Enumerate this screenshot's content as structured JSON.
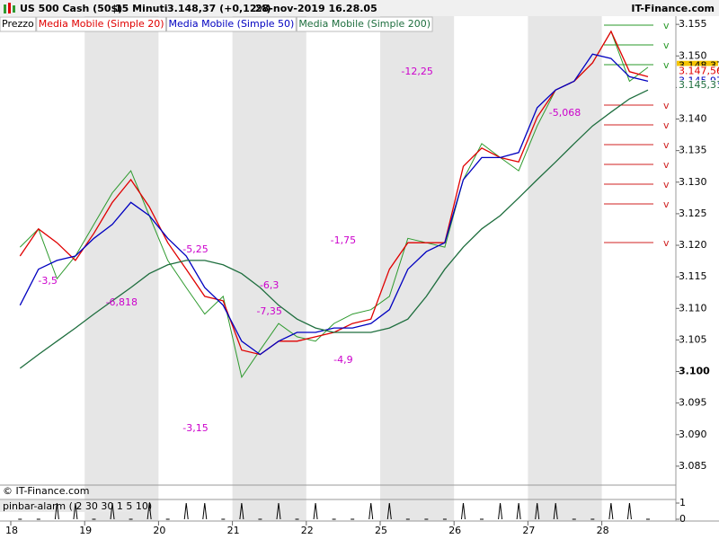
{
  "chart_data": {
    "type": "line",
    "title": "US 500 Cash (50$)",
    "interval": "15 Minuti",
    "quote": "3.148,37 (+0,12%)",
    "timestamp": "28-nov-2019 16.28.05",
    "brand": "IT-Finance.com",
    "footer": "© IT-Finance.com",
    "categories": [
      "18",
      "19",
      "20",
      "21",
      "22",
      "25",
      "26",
      "27",
      "28"
    ],
    "series": [
      {
        "name": "Prezzo",
        "color": "#2e9a2e",
        "values": [
          [
            3119.7,
            3122.6,
            3114.7,
            3118.3
          ],
          [
            3123.3,
            3128.3,
            3131.8,
            3124.7
          ],
          [
            3117.6,
            3113.3,
            3109.1,
            3111.9
          ],
          [
            3099.1,
            3103.4,
            3107.6,
            3105.5
          ],
          [
            3104.8,
            3107.6,
            3109.1,
            3109.8
          ],
          [
            3111.9,
            3121.1,
            3120.4,
            3119.7
          ],
          [
            3130.4,
            3136.1,
            3133.9,
            3131.8
          ],
          [
            3138.9,
            3144.6,
            3146.0,
            3148.9
          ],
          [
            3153.9,
            3146.0,
            3148.2,
            null
          ]
        ]
      },
      {
        "name": "Media Mobile (Simple 20)",
        "color": "#e00000",
        "values": [
          [
            3118.3,
            3122.6,
            3120.4,
            3117.6
          ],
          [
            3121.9,
            3126.8,
            3130.4,
            3126.1
          ],
          [
            3120.4,
            3116.2,
            3111.9,
            3111.2
          ],
          [
            3103.4,
            3102.7,
            3104.8,
            3104.8
          ],
          [
            3105.5,
            3106.2,
            3107.6,
            3108.3
          ],
          [
            3116.2,
            3120.4,
            3120.4,
            3120.4
          ],
          [
            3132.5,
            3135.4,
            3133.9,
            3133.2
          ],
          [
            3140.3,
            3144.6,
            3146.0,
            3148.9
          ],
          [
            3153.9,
            3147.5,
            3146.7,
            null
          ]
        ]
      },
      {
        "name": "Media Mobile (Simple 50)",
        "color": "#0000c0",
        "values": [
          [
            3110.5,
            3116.2,
            3117.6,
            3118.3
          ],
          [
            3121.1,
            3123.3,
            3126.8,
            3124.7
          ],
          [
            3121.1,
            3118.3,
            3113.3,
            3110.5
          ],
          [
            3104.8,
            3102.7,
            3104.8,
            3106.2
          ],
          [
            3106.2,
            3106.9,
            3106.9,
            3107.6
          ],
          [
            3109.8,
            3116.2,
            3119.0,
            3120.4
          ],
          [
            3130.4,
            3133.9,
            3133.9,
            3134.7
          ],
          [
            3141.8,
            3144.6,
            3146.0,
            3150.3
          ],
          [
            3149.6,
            3146.7,
            3146.0,
            null
          ]
        ]
      },
      {
        "name": "Media Mobile (Simple 200)",
        "color": "#1e6e3e",
        "values": [
          [
            3100.5,
            3102.7,
            3104.8,
            3106.9
          ],
          [
            3109.1,
            3111.2,
            3113.3,
            3115.5
          ],
          [
            3116.9,
            3117.6,
            3117.6,
            3116.9
          ],
          [
            3115.5,
            3113.3,
            3110.5,
            3108.3
          ],
          [
            3106.9,
            3106.2,
            3106.2,
            3106.2
          ],
          [
            3106.9,
            3108.3,
            3111.9,
            3116.2
          ],
          [
            3119.7,
            3122.6,
            3124.7,
            3127.5
          ],
          [
            3130.4,
            3133.2,
            3136.1,
            3138.9
          ],
          [
            3141.1,
            3143.2,
            3144.6,
            null
          ]
        ]
      }
    ],
    "ylim": [
      3082,
      3156.3
    ],
    "yticks": [
      {
        "value": 3085,
        "label": "3.085"
      },
      {
        "value": 3090,
        "label": "3.090"
      },
      {
        "value": 3095,
        "label": "3.095"
      },
      {
        "value": 3100,
        "label": "3.100"
      },
      {
        "value": 3105,
        "label": "3.105"
      },
      {
        "value": 3110,
        "label": "3.110"
      },
      {
        "value": 3115,
        "label": "3.115"
      },
      {
        "value": 3120,
        "label": "3.120"
      },
      {
        "value": 3125,
        "label": "3.125"
      },
      {
        "value": 3130,
        "label": "3.130"
      },
      {
        "value": 3135,
        "label": "3.135"
      },
      {
        "value": 3140,
        "label": "3.140"
      },
      {
        "value": 3145,
        "label": "3.145"
      },
      {
        "value": 3150,
        "label": "3.150"
      },
      {
        "value": 3155,
        "label": "3.155"
      }
    ],
    "price_labels": [
      {
        "value": 3148.37,
        "label": "3.148,37",
        "color": "#f5c400"
      },
      {
        "value": 3147.56,
        "label": "3.147,56",
        "color": "#e00000"
      },
      {
        "value": 3145.97,
        "label": "3.145,97",
        "color": "#0000c0"
      },
      {
        "value": 3145.31,
        "label": "3.145,31",
        "color": "#1e6e3e"
      }
    ],
    "annotations": [
      {
        "text": "-3,5",
        "category": 0,
        "y": 3114.3
      },
      {
        "text": "-6,818",
        "category": 1,
        "y": 3110.9
      },
      {
        "text": "-5,25",
        "category": 2,
        "y": 3119.3
      },
      {
        "text": "-3,15",
        "category": 2,
        "y": 3091.0
      },
      {
        "text": "-7,35",
        "category": 3,
        "y": 3109.5
      },
      {
        "text": "-6,3",
        "category": 3,
        "y": 3113.6
      },
      {
        "text": "-1,75",
        "category": 4,
        "y": 3120.7
      },
      {
        "text": "-4,9",
        "category": 4,
        "y": 3101.8
      },
      {
        "text": "-12,25",
        "category": 5,
        "y": 3147.5
      },
      {
        "text": "-5,068",
        "category": 7,
        "y": 3140.9
      }
    ],
    "indicator": {
      "label": "pinbar-alarm ( 2 30 30 1 5 10)",
      "ylim": [
        0,
        1
      ],
      "yticks": [
        0,
        1
      ],
      "values": [
        [
          0,
          0,
          1,
          1
        ],
        [
          0,
          1,
          0,
          1
        ],
        [
          0,
          1,
          1,
          0
        ],
        [
          1,
          0,
          1,
          0
        ],
        [
          1,
          0,
          0,
          1
        ],
        [
          1,
          0,
          0,
          0
        ],
        [
          1,
          0,
          1,
          1
        ],
        [
          1,
          1,
          0,
          0
        ],
        [
          1,
          1,
          0,
          null
        ]
      ]
    }
  }
}
